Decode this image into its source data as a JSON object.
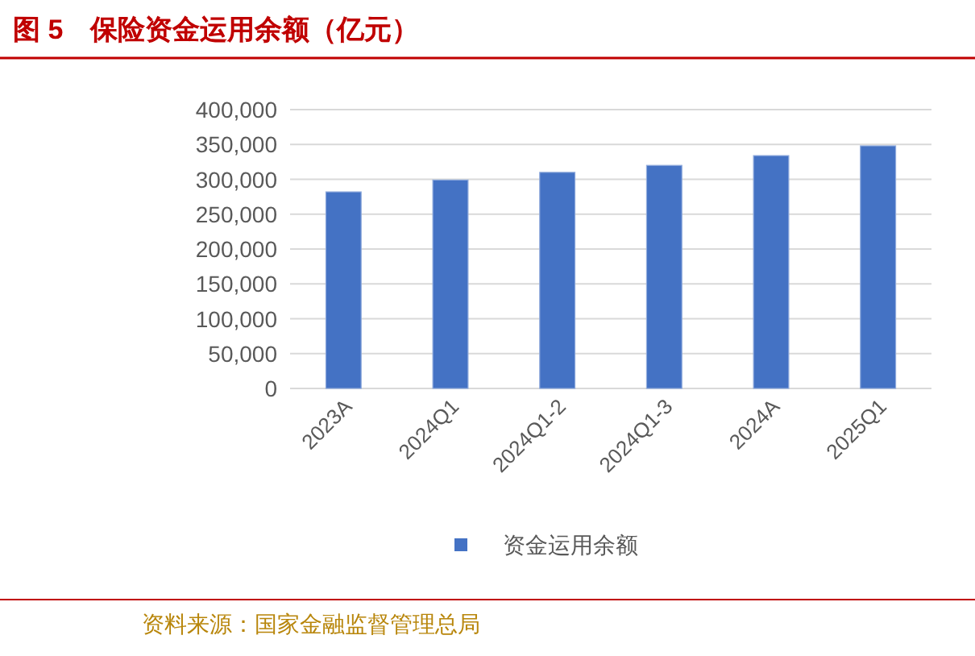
{
  "chart_data": {
    "type": "bar",
    "title": "图 5　保险资金运用余额（亿元）",
    "categories": [
      "2023A",
      "2024Q1",
      "2024Q1-2",
      "2024Q1-3",
      "2024A",
      "2025Q1"
    ],
    "series": [
      {
        "name": "资金运用余额",
        "color": "#4472c4",
        "values": [
          282000,
          299000,
          310000,
          320000,
          334000,
          348000
        ]
      }
    ],
    "ylim": [
      0,
      400000
    ],
    "yticks": [
      {
        "value": 0,
        "label": "0"
      },
      {
        "value": 50000,
        "label": "50,000"
      },
      {
        "value": 100000,
        "label": "100,000"
      },
      {
        "value": 150000,
        "label": "150,000"
      },
      {
        "value": 200000,
        "label": "200,000"
      },
      {
        "value": 250000,
        "label": "250,000"
      },
      {
        "value": 300000,
        "label": "300,000"
      },
      {
        "value": 350000,
        "label": "350,000"
      },
      {
        "value": 400000,
        "label": "400,000"
      }
    ],
    "grid": "y",
    "legend": "bottom",
    "annotations": [
      "资料来源：国家金融监督管理总局"
    ]
  }
}
